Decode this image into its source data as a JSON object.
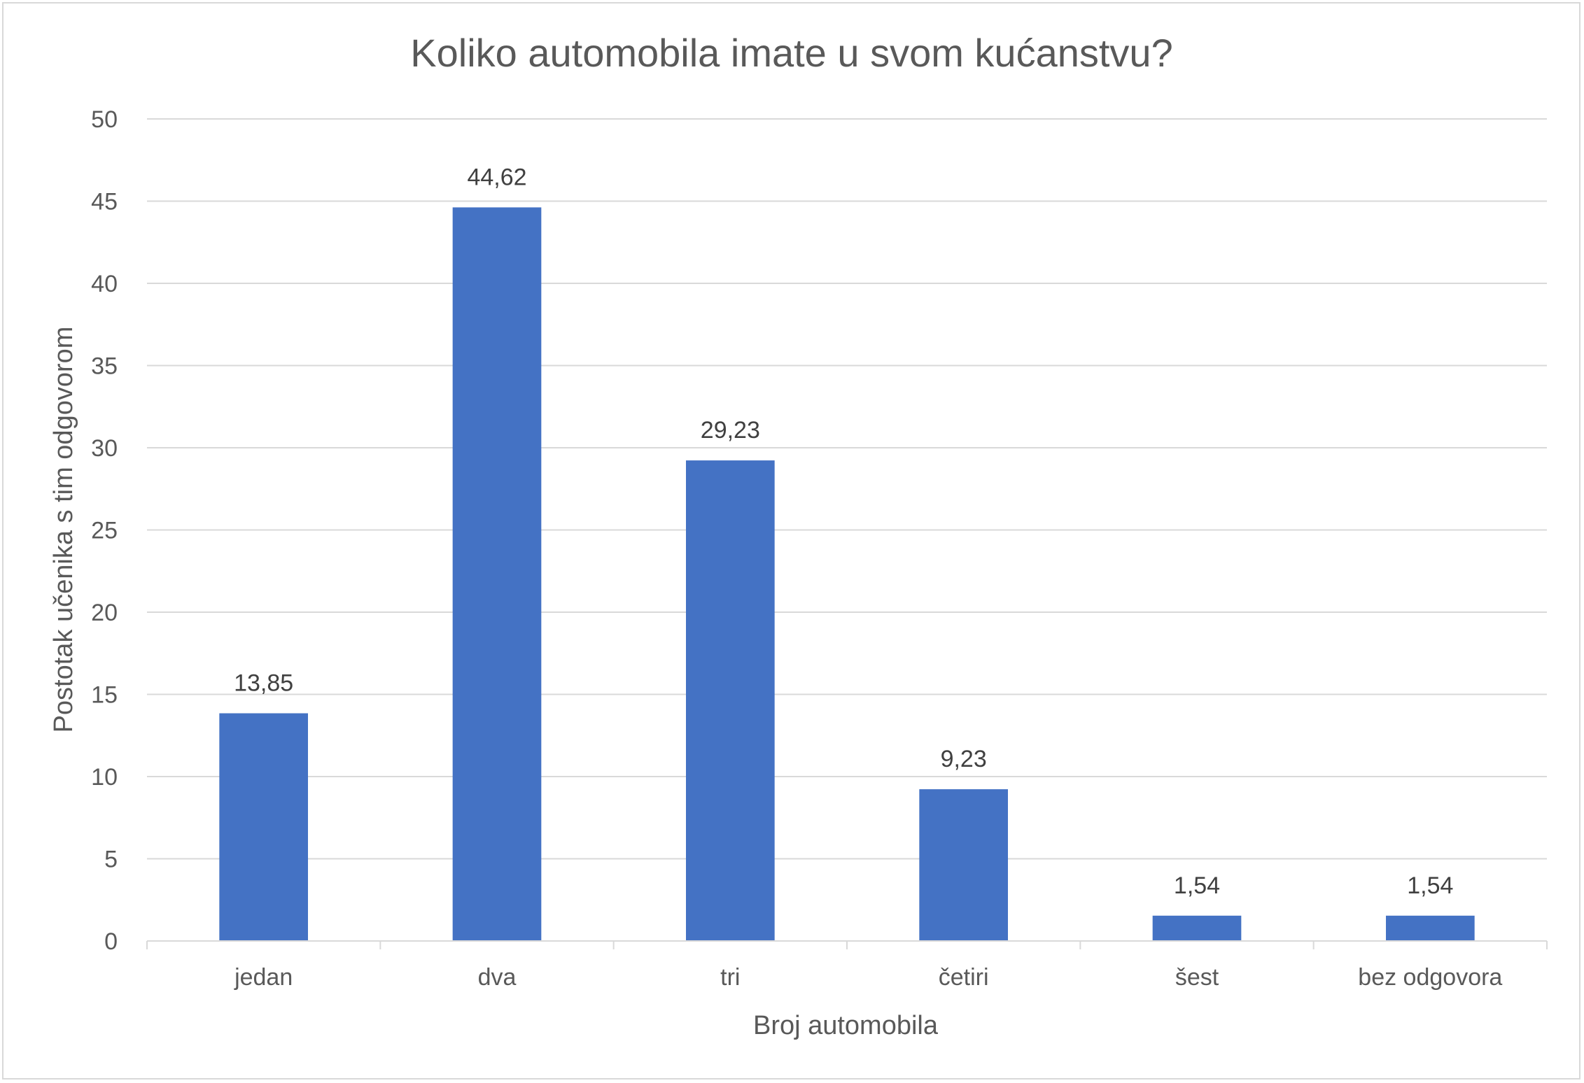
{
  "chart_data": {
    "type": "bar",
    "title": "Koliko automobila imate u svom kućanstvu?",
    "xlabel": "Broj automobila",
    "ylabel": "Postotak učenika s tim odgovorom",
    "categories": [
      "jedan",
      "dva",
      "tri",
      "četiri",
      "šest",
      "bez odgovora"
    ],
    "values": [
      13.85,
      44.62,
      29.23,
      9.23,
      1.54,
      1.54
    ],
    "data_labels": [
      "13,85",
      "44,62",
      "29,23",
      "9,23",
      "1,54",
      "1,54"
    ],
    "ylim": [
      0,
      50
    ],
    "yticks": [
      0,
      5,
      10,
      15,
      20,
      25,
      30,
      35,
      40,
      45,
      50
    ],
    "grid": true,
    "legend": "none",
    "bar_color": "#4472c4",
    "grid_color": "#d9d9d9"
  }
}
